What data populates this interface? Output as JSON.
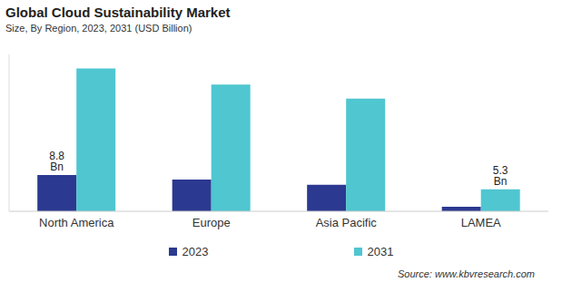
{
  "chart_data": {
    "type": "bar",
    "title": "Global Cloud Sustainability Market",
    "subtitle": "Size, By Region, 2023, 2031 (USD Billion)",
    "source": "Source: www.kbvresearch.com",
    "categories": [
      "North America",
      "Europe",
      "Asia Pacific",
      "LAMEA"
    ],
    "series": [
      {
        "name": "2023",
        "color": "#2b3990",
        "values": [
          8.8,
          7.7,
          6.4,
          1.1
        ],
        "value_labels": [
          "8.8 Bn",
          null,
          null,
          null
        ]
      },
      {
        "name": "2031",
        "color": "#4fc6d0",
        "values": [
          34.6,
          30.7,
          27.3,
          5.3
        ],
        "value_labels": [
          null,
          null,
          null,
          "5.3 Bn"
        ]
      }
    ],
    "ylim": [
      0,
      38
    ],
    "grid": false,
    "legend": "bottom",
    "data_labels": true,
    "tick_labels": "x"
  }
}
